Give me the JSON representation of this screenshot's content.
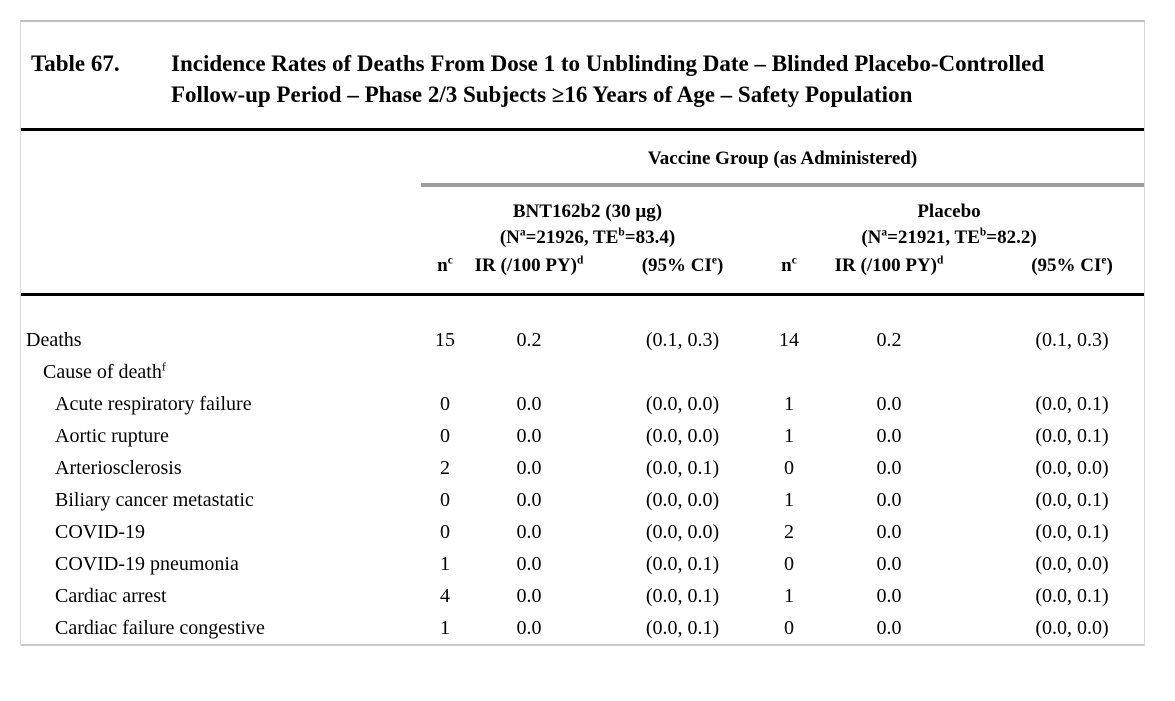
{
  "table": {
    "label": "Table 67.",
    "title": "Incidence Rates of Deaths From Dose 1 to Unblinding Date – Blinded Placebo-Controlled Follow-up Period – Phase 2/3 Subjects ≥16 Years of Age – Safety Population",
    "vaccine_group_header": "Vaccine Group (as Administered)",
    "groups": [
      {
        "name": "BNT162b2 (30 µg)",
        "subtitle_parts": {
          "p1": "(N",
          "s1": "a",
          "p2": "=21926, TE",
          "s2": "b",
          "p3": "=83.4)"
        }
      },
      {
        "name": "Placebo",
        "subtitle_parts": {
          "p1": "(N",
          "s1": "a",
          "p2": "=21921, TE",
          "s2": "b",
          "p3": "=82.2)"
        }
      }
    ],
    "column_headers": {
      "n": {
        "base": "n",
        "sup": "c"
      },
      "ir": {
        "base": "IR (/100 PY)",
        "sup": "d"
      },
      "ci": {
        "pre": "(95% CI",
        "sup": "e",
        "post": ")"
      }
    },
    "rows": [
      {
        "label": "Deaths",
        "label_sup": "",
        "indent": 0,
        "values": [
          "15",
          "0.2",
          "(0.1, 0.3)",
          "14",
          "0.2",
          "(0.1, 0.3)"
        ]
      },
      {
        "label": "Cause of death",
        "label_sup": "f",
        "indent": 1,
        "values": [
          "",
          "",
          "",
          "",
          "",
          ""
        ]
      },
      {
        "label": "Acute respiratory failure",
        "label_sup": "",
        "indent": 2,
        "values": [
          "0",
          "0.0",
          "(0.0, 0.0)",
          "1",
          "0.0",
          "(0.0, 0.1)"
        ]
      },
      {
        "label": "Aortic rupture",
        "label_sup": "",
        "indent": 2,
        "values": [
          "0",
          "0.0",
          "(0.0, 0.0)",
          "1",
          "0.0",
          "(0.0, 0.1)"
        ]
      },
      {
        "label": "Arteriosclerosis",
        "label_sup": "",
        "indent": 2,
        "values": [
          "2",
          "0.0",
          "(0.0, 0.1)",
          "0",
          "0.0",
          "(0.0, 0.0)"
        ]
      },
      {
        "label": "Biliary cancer metastatic",
        "label_sup": "",
        "indent": 2,
        "values": [
          "0",
          "0.0",
          "(0.0, 0.0)",
          "1",
          "0.0",
          "(0.0, 0.1)"
        ]
      },
      {
        "label": "COVID-19",
        "label_sup": "",
        "indent": 2,
        "values": [
          "0",
          "0.0",
          "(0.0, 0.0)",
          "2",
          "0.0",
          "(0.0, 0.1)"
        ]
      },
      {
        "label": "COVID-19 pneumonia",
        "label_sup": "",
        "indent": 2,
        "values": [
          "1",
          "0.0",
          "(0.0, 0.1)",
          "0",
          "0.0",
          "(0.0, 0.0)"
        ]
      },
      {
        "label": "Cardiac arrest",
        "label_sup": "",
        "indent": 2,
        "values": [
          "4",
          "0.0",
          "(0.0, 0.1)",
          "1",
          "0.0",
          "(0.0, 0.1)"
        ]
      },
      {
        "label": "Cardiac failure congestive",
        "label_sup": "",
        "indent": 2,
        "values": [
          "1",
          "0.0",
          "(0.0, 0.1)",
          "0",
          "0.0",
          "(0.0, 0.0)"
        ]
      }
    ]
  },
  "colors": {
    "rule_black": "#000000",
    "rule_gray": "#9c9c9c"
  }
}
